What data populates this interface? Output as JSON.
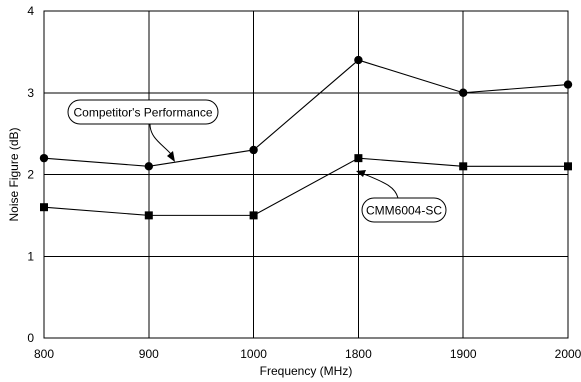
{
  "chart_data": {
    "type": "line",
    "categories": [
      "800",
      "900",
      "1000",
      "1800",
      "1900",
      "2000"
    ],
    "xlabel": "Frequency (MHz)",
    "ylabel": "Noise Figure (dB)",
    "ylim": [
      0,
      4
    ],
    "yticks": [
      0,
      1,
      2,
      3,
      4
    ],
    "grid": true,
    "legend": "none",
    "series": [
      {
        "name": "Competitor's Performance",
        "marker": "circle",
        "color": "#000000",
        "values": [
          2.2,
          2.1,
          2.3,
          3.4,
          3.0,
          3.1
        ]
      },
      {
        "name": "CMM6004-SC",
        "marker": "square",
        "color": "#000000",
        "values": [
          1.6,
          1.5,
          1.5,
          2.2,
          2.1,
          2.1
        ]
      }
    ],
    "annotations": [
      {
        "text": "Competitor's Performance",
        "series": 0,
        "points_to": "900",
        "placement": "upper-left"
      },
      {
        "text": "CMM6004-SC",
        "series": 1,
        "points_to": "1800",
        "placement": "lower-right"
      }
    ]
  }
}
